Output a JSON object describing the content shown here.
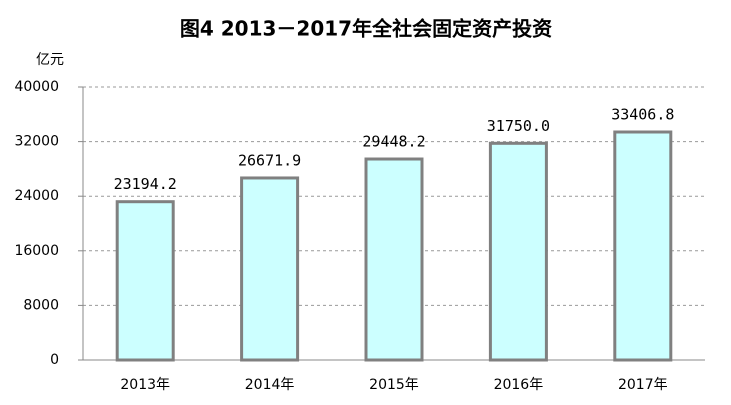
{
  "chart_data": {
    "type": "bar",
    "title": "图4 2013－2017年全社会固定资产投资",
    "y_label": "亿元",
    "categories": [
      "2013年",
      "2014年",
      "2015年",
      "2016年",
      "2017年"
    ],
    "values": [
      23194.2,
      26671.9,
      29448.2,
      31750.0,
      33406.8
    ],
    "value_labels": [
      "23194.2",
      "26671.9",
      "29448.2",
      "31750.0",
      "33406.8"
    ],
    "color": "#ccffff",
    "edge_color": "#808080",
    "ylim": [
      0,
      40000
    ],
    "yticks": [
      0,
      8000,
      16000,
      24000,
      32000,
      40000
    ],
    "grid": true
  }
}
